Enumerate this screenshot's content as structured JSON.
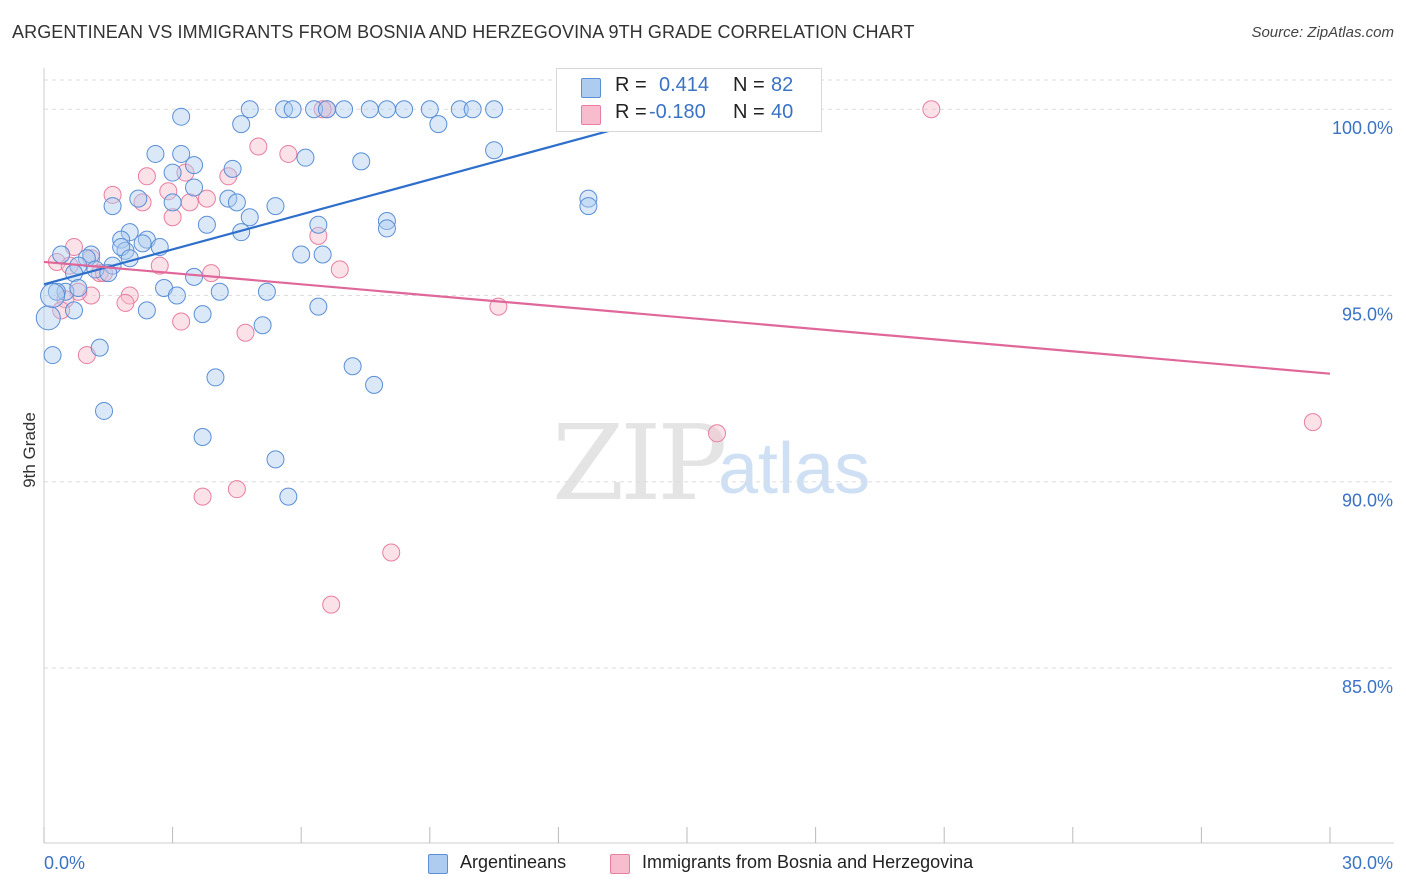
{
  "title": "ARGENTINEAN VS IMMIGRANTS FROM BOSNIA AND HERZEGOVINA 9TH GRADE CORRELATION CHART",
  "source": "Source: ZipAtlas.com",
  "watermark": {
    "zip": "ZIP",
    "atlas": "atlas"
  },
  "legend": {
    "r_label": "R =",
    "n_label": "N =",
    "series1": {
      "r": "0.414",
      "n": "82"
    },
    "series2": {
      "r": "-0.180",
      "n": "40"
    }
  },
  "bottom_legend": {
    "series1": "Argentineans",
    "series2": "Immigrants from Bosnia and Herzegovina"
  },
  "colors": {
    "blue_fill": "#aecbf0",
    "blue_stroke": "#5b8fd6",
    "blue_line": "#2f6fcc",
    "pink_fill": "#f7bccd",
    "pink_stroke": "#e87fa0",
    "pink_line": "#e0679a",
    "grid": "#dddddd",
    "tick_text": "#3b73c4"
  },
  "chart_data": {
    "type": "scatter",
    "title": "ARGENTINEAN VS IMMIGRANTS FROM BOSNIA AND HERZEGOVINA 9TH GRADE CORRELATION CHART",
    "xlabel": "",
    "ylabel": "9th Grade",
    "xlim": [
      0,
      30
    ],
    "ylim": [
      80.3,
      101.0
    ],
    "x_tick_labels": [
      "0.0%",
      "30.0%"
    ],
    "y_ticks": [
      85,
      90,
      95,
      100
    ],
    "y_tick_labels": [
      "85.0%",
      "90.0%",
      "95.0%",
      "100.0%"
    ],
    "grid": true,
    "series": [
      {
        "name": "Argentineans",
        "r": 0.414,
        "n": 82,
        "trend": {
          "x": [
            0,
            14.4
          ],
          "y": [
            95.3,
            99.8
          ]
        },
        "points": [
          [
            3.2,
            99.8
          ],
          [
            4.8,
            100
          ],
          [
            5.6,
            100
          ],
          [
            5.8,
            100
          ],
          [
            6.3,
            100
          ],
          [
            6.6,
            100
          ],
          [
            7.0,
            100
          ],
          [
            7.6,
            100
          ],
          [
            8.0,
            100
          ],
          [
            8.4,
            100
          ],
          [
            9.0,
            100
          ],
          [
            9.7,
            100
          ],
          [
            10.0,
            100
          ],
          [
            10.5,
            100
          ],
          [
            17.9,
            100
          ],
          [
            4.6,
            99.6
          ],
          [
            9.2,
            99.6
          ],
          [
            2.6,
            98.8
          ],
          [
            3.2,
            98.8
          ],
          [
            10.5,
            98.9
          ],
          [
            3.5,
            98.5
          ],
          [
            4.4,
            98.4
          ],
          [
            3.0,
            98.3
          ],
          [
            6.1,
            98.7
          ],
          [
            7.4,
            98.6
          ],
          [
            1.6,
            97.4
          ],
          [
            2.2,
            97.6
          ],
          [
            3.0,
            97.5
          ],
          [
            4.3,
            97.6
          ],
          [
            4.5,
            97.5
          ],
          [
            5.4,
            97.4
          ],
          [
            12.7,
            97.6
          ],
          [
            12.7,
            97.4
          ],
          [
            4.8,
            97.1
          ],
          [
            3.8,
            96.9
          ],
          [
            4.6,
            96.7
          ],
          [
            6.4,
            96.9
          ],
          [
            8.0,
            97.0
          ],
          [
            8.0,
            96.8
          ],
          [
            2.0,
            96.7
          ],
          [
            2.4,
            96.5
          ],
          [
            1.8,
            96.5
          ],
          [
            1.9,
            96.2
          ],
          [
            2.7,
            96.3
          ],
          [
            1.1,
            96.1
          ],
          [
            1.8,
            96.3
          ],
          [
            6.0,
            96.1
          ],
          [
            6.5,
            96.1
          ],
          [
            1.0,
            96.0
          ],
          [
            2.0,
            96.0
          ],
          [
            0.8,
            95.8
          ],
          [
            1.2,
            95.7
          ],
          [
            1.6,
            95.8
          ],
          [
            0.7,
            95.6
          ],
          [
            3.5,
            95.5
          ],
          [
            0.5,
            95.1
          ],
          [
            0.3,
            95.1
          ],
          [
            0.8,
            95.2
          ],
          [
            2.8,
            95.2
          ],
          [
            3.1,
            95.0
          ],
          [
            4.1,
            95.1
          ],
          [
            5.2,
            95.1
          ],
          [
            0.7,
            94.6
          ],
          [
            2.4,
            94.6
          ],
          [
            3.7,
            94.5
          ],
          [
            6.4,
            94.7
          ],
          [
            5.1,
            94.2
          ],
          [
            1.3,
            93.6
          ],
          [
            0.2,
            93.4
          ],
          [
            7.2,
            93.1
          ],
          [
            4.0,
            92.8
          ],
          [
            7.7,
            92.6
          ],
          [
            1.4,
            91.9
          ],
          [
            3.7,
            91.2
          ],
          [
            5.4,
            90.6
          ],
          [
            5.7,
            89.6
          ],
          [
            0.1,
            94.4
          ],
          [
            0.2,
            95.0
          ],
          [
            0.4,
            96.1
          ],
          [
            1.5,
            95.6
          ],
          [
            2.3,
            96.4
          ],
          [
            3.5,
            97.9
          ]
        ]
      },
      {
        "name": "Immigrants from Bosnia and Herzegovina",
        "r": -0.18,
        "n": 40,
        "trend": {
          "x": [
            0,
            30
          ],
          "y": [
            95.9,
            92.9
          ]
        },
        "points": [
          [
            0.3,
            95.9
          ],
          [
            0.7,
            96.3
          ],
          [
            0.6,
            95.8
          ],
          [
            1.3,
            95.6
          ],
          [
            1.1,
            95.0
          ],
          [
            1.4,
            95.6
          ],
          [
            2.0,
            95.0
          ],
          [
            0.8,
            95.1
          ],
          [
            0.5,
            94.9
          ],
          [
            1.6,
            97.7
          ],
          [
            2.3,
            97.5
          ],
          [
            2.4,
            98.2
          ],
          [
            2.9,
            97.8
          ],
          [
            3.3,
            98.3
          ],
          [
            3.0,
            97.1
          ],
          [
            3.4,
            97.5
          ],
          [
            3.8,
            97.6
          ],
          [
            4.3,
            98.2
          ],
          [
            5.0,
            99.0
          ],
          [
            5.7,
            98.8
          ],
          [
            2.7,
            95.8
          ],
          [
            3.9,
            95.6
          ],
          [
            6.4,
            96.6
          ],
          [
            6.9,
            95.7
          ],
          [
            10.6,
            94.7
          ],
          [
            1.9,
            94.8
          ],
          [
            3.2,
            94.3
          ],
          [
            4.7,
            94.0
          ],
          [
            1.0,
            93.4
          ],
          [
            6.6,
            100
          ],
          [
            20.7,
            100
          ],
          [
            6.5,
            100
          ],
          [
            15.7,
            91.3
          ],
          [
            29.6,
            91.6
          ],
          [
            4.5,
            89.8
          ],
          [
            3.7,
            89.6
          ],
          [
            8.1,
            88.1
          ],
          [
            6.7,
            86.7
          ],
          [
            0.4,
            94.6
          ],
          [
            1.1,
            96.0
          ]
        ]
      }
    ]
  }
}
